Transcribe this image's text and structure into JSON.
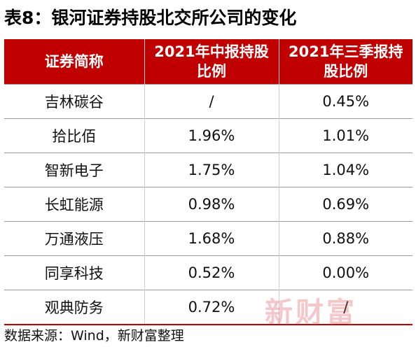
{
  "title": "表8：银河证券持股北交所公司的变化",
  "table": {
    "headers": {
      "col1": "证券简称",
      "col2_line1": "2021年中报持股",
      "col2_line2": "比例",
      "col3_line1": "2021年三季报持",
      "col3_line2": "股比例"
    },
    "rows": [
      {
        "name": "吉林碳谷",
        "h1": "/",
        "q3": "0.45%"
      },
      {
        "name": "拾比佰",
        "h1": "1.96%",
        "q3": "1.01%"
      },
      {
        "name": "智新电子",
        "h1": "1.75%",
        "q3": "1.04%"
      },
      {
        "name": "长虹能源",
        "h1": "0.98%",
        "q3": "0.69%"
      },
      {
        "name": "万通液压",
        "h1": "1.68%",
        "q3": "0.88%"
      },
      {
        "name": "同享科技",
        "h1": "0.52%",
        "q3": "0.00%"
      },
      {
        "name": "观典防务",
        "h1": "0.72%",
        "q3": "/"
      }
    ]
  },
  "watermark": "新财富",
  "source": "数据来源：Wind，新财富整理",
  "colors": {
    "header_bg": "#c00000",
    "header_text": "#ffffff",
    "watermark": "#dc505a"
  }
}
